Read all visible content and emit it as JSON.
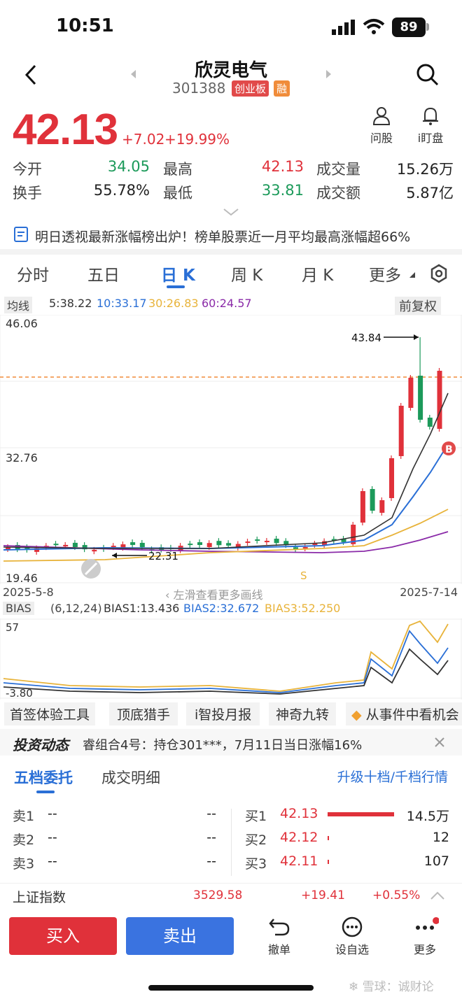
{
  "status": {
    "time": "10:51",
    "battery": "89"
  },
  "header": {
    "name": "欣灵电气",
    "code": "301388",
    "tag1": "创业板",
    "tag2": "融"
  },
  "quote": {
    "price": "42.13",
    "change": "+7.02",
    "change_pct": "+19.99%",
    "tools": [
      {
        "label": "问股",
        "icon": "person-icon"
      },
      {
        "label": "i盯盘",
        "icon": "bell-icon"
      }
    ],
    "rows": [
      {
        "l1": "今开",
        "v1": "34.05",
        "l2": "最高",
        "v2": "42.13",
        "l3": "成交量",
        "v3": "15.26万"
      },
      {
        "l1": "换手",
        "v1": "55.78%",
        "l2": "最低",
        "v2": "33.81",
        "l3": "成交额",
        "v3": "5.87亿"
      }
    ]
  },
  "news": "明日透视最新涨幅榜出炉！榜单股票近一月平均最高涨幅超66%",
  "tabs": [
    "分时",
    "五日",
    "日 K",
    "周 K",
    "月 K",
    "更多"
  ],
  "ma": {
    "label": "均线",
    "ma5": "5:38.22",
    "ma10": "10:33.17",
    "ma30": "30:26.83",
    "ma60": "60:24.57",
    "adjust": "前复权"
  },
  "chart_data": {
    "type": "candlestick",
    "y_top": "46.06",
    "y_mid": "32.76",
    "y_bottom": "19.46",
    "x_start": "2025-5-8",
    "x_end": "2025-7-14",
    "high_annotation": "43.84",
    "low_annotation": "22.31",
    "swipe_hint": "左滑查看更多画线",
    "marker_s": "S",
    "marker_b": "B",
    "colors": {
      "up": "#e0313a",
      "down": "#1c9a5a",
      "ma5": "#333333",
      "ma10": "#2a6fd6",
      "ma30": "#e8b33a",
      "ma60": "#8a2aa8"
    }
  },
  "bias": {
    "label": "BIAS",
    "params": "(6,12,24)",
    "b1": "BIAS1:13.436",
    "b2": "BIAS2:32.672",
    "b3": "BIAS3:52.250",
    "top": "57",
    "bottom": "-3.80"
  },
  "tools_row": [
    "首签体验工具",
    "顶底猎手",
    "i智投月报",
    "神奇九转",
    "从事件中看机会"
  ],
  "dynamic": {
    "title": "投资动态",
    "text": "睿组合4号：持仓301***，7月11日当日涨幅16%"
  },
  "orderbook": {
    "tab1": "五档委托",
    "tab2": "成交明细",
    "upgrade": "升级十档/千档行情",
    "sells": [
      {
        "label": "卖1",
        "price": "--",
        "vol": "--"
      },
      {
        "label": "卖2",
        "price": "--",
        "vol": "--"
      },
      {
        "label": "卖3",
        "price": "--",
        "vol": "--"
      }
    ],
    "buys": [
      {
        "label": "买1",
        "price": "42.13",
        "vol": "14.5万"
      },
      {
        "label": "买2",
        "price": "42.12",
        "vol": "12"
      },
      {
        "label": "买3",
        "price": "42.11",
        "vol": "107"
      }
    ]
  },
  "index": {
    "name": "上证指数",
    "value": "3529.58",
    "change": "+19.41",
    "pct": "+0.55%"
  },
  "bottom": {
    "buy": "买入",
    "sell": "卖出",
    "cancel": "撤单",
    "watch": "设自选",
    "more": "更多"
  },
  "watermark": "雪球：诚财论"
}
